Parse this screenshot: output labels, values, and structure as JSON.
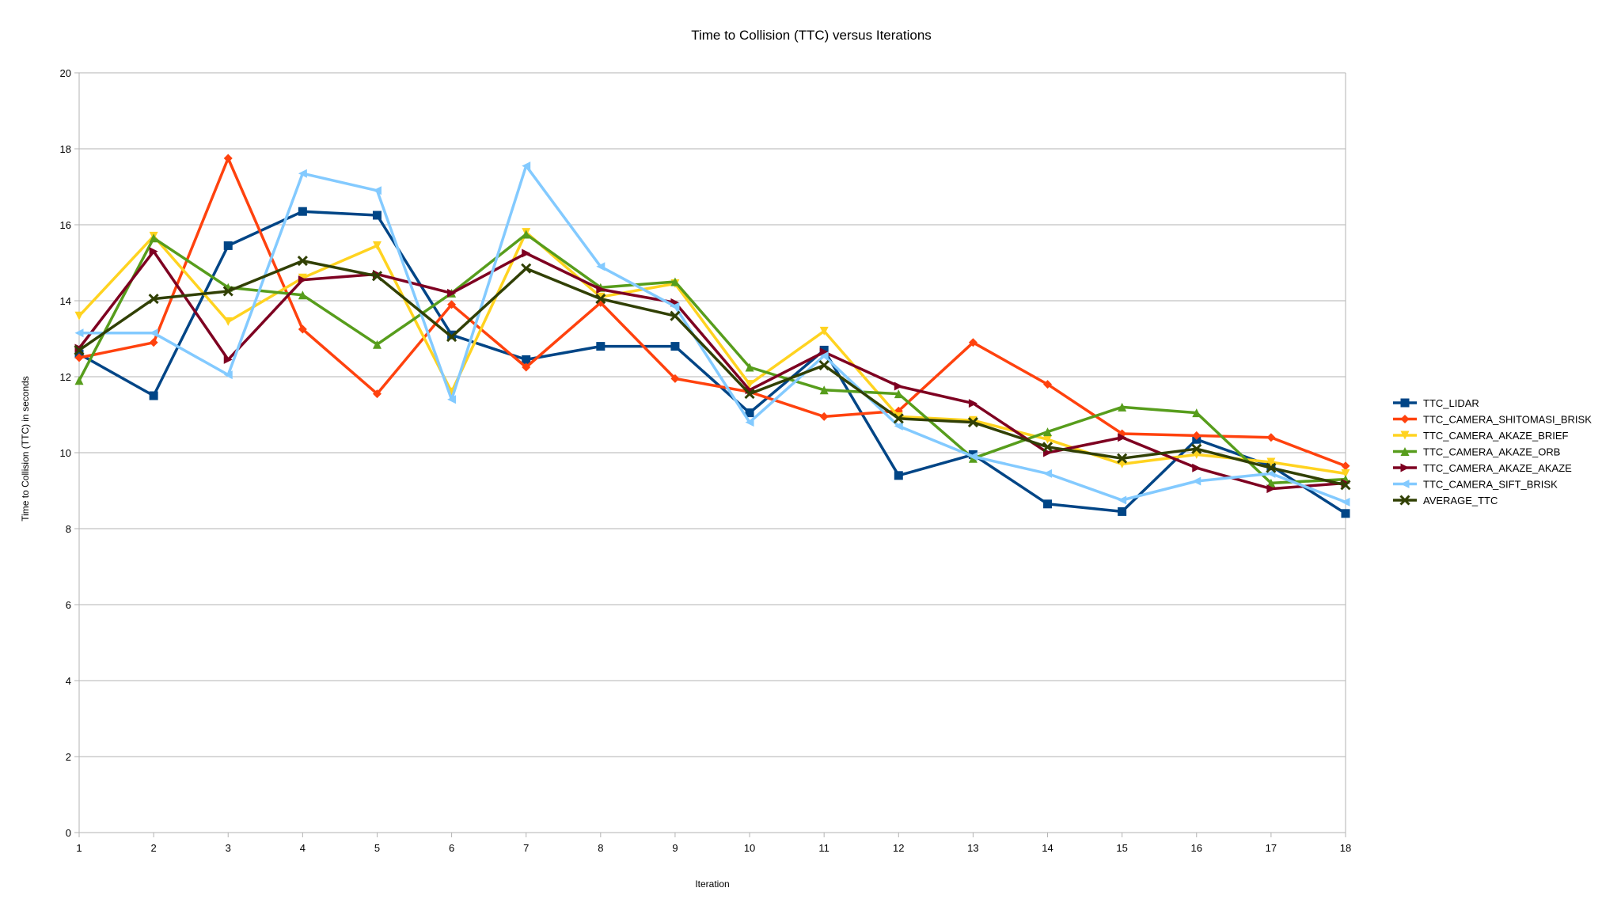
{
  "chart_data": {
    "type": "line",
    "title": "Time to Collision (TTC) versus Iterations",
    "xlabel": "Iteration",
    "ylabel": "Time to Collision (TTC) in seconds",
    "x": [
      1,
      2,
      3,
      4,
      5,
      6,
      7,
      8,
      9,
      10,
      11,
      12,
      13,
      14,
      15,
      16,
      17,
      18
    ],
    "ylim": [
      0,
      20
    ],
    "yticks": [
      0,
      2,
      4,
      6,
      8,
      10,
      12,
      14,
      16,
      18,
      20
    ],
    "grid": "horizontal",
    "legend_position": "right",
    "series": [
      {
        "name": "TTC_LIDAR",
        "color": "#004586",
        "marker": "square",
        "values": [
          12.6,
          11.5,
          15.45,
          16.35,
          16.25,
          13.1,
          12.45,
          12.8,
          12.8,
          11.05,
          12.7,
          9.4,
          9.95,
          8.65,
          8.45,
          10.35,
          9.65,
          8.4
        ]
      },
      {
        "name": "TTC_CAMERA_SHITOMASI_BRISK",
        "color": "#ff420e",
        "marker": "diamond",
        "values": [
          12.5,
          12.9,
          17.75,
          13.25,
          11.55,
          13.9,
          12.25,
          13.95,
          11.95,
          11.6,
          10.95,
          11.1,
          12.9,
          11.8,
          10.5,
          10.45,
          10.4,
          9.65
        ]
      },
      {
        "name": "TTC_CAMERA_AKAZE_BRIEF",
        "color": "#ffd320",
        "marker": "triangle-down",
        "values": [
          13.6,
          15.7,
          13.45,
          14.6,
          15.45,
          11.6,
          15.8,
          14.1,
          14.45,
          11.8,
          13.2,
          10.95,
          10.85,
          10.35,
          9.7,
          9.95,
          9.75,
          9.45
        ]
      },
      {
        "name": "TTC_CAMERA_AKAZE_ORB",
        "color": "#579d1c",
        "marker": "triangle-up",
        "values": [
          11.9,
          15.65,
          14.35,
          14.15,
          12.85,
          14.2,
          15.75,
          14.35,
          14.5,
          12.25,
          11.65,
          11.55,
          9.85,
          10.55,
          11.2,
          11.05,
          9.2,
          9.3
        ]
      },
      {
        "name": "TTC_CAMERA_AKAZE_AKAZE",
        "color": "#7e0021",
        "marker": "triangle-right",
        "values": [
          12.75,
          15.3,
          12.45,
          14.55,
          14.7,
          14.2,
          15.25,
          14.3,
          13.95,
          11.65,
          12.65,
          11.75,
          11.3,
          10.0,
          10.4,
          9.6,
          9.05,
          9.2
        ]
      },
      {
        "name": "TTC_CAMERA_SIFT_BRISK",
        "color": "#83caff",
        "marker": "triangle-left",
        "values": [
          13.15,
          13.15,
          12.05,
          17.35,
          16.9,
          11.4,
          17.55,
          14.9,
          13.85,
          10.8,
          12.55,
          10.7,
          9.9,
          9.45,
          8.75,
          9.25,
          9.45,
          8.7
        ]
      },
      {
        "name": "AVERAGE_TTC",
        "color": "#314004",
        "marker": "x",
        "values": [
          12.7,
          14.05,
          14.25,
          15.05,
          14.65,
          13.05,
          14.85,
          14.05,
          13.6,
          11.55,
          12.3,
          10.9,
          10.8,
          10.15,
          9.85,
          10.1,
          9.6,
          9.15
        ]
      }
    ]
  }
}
